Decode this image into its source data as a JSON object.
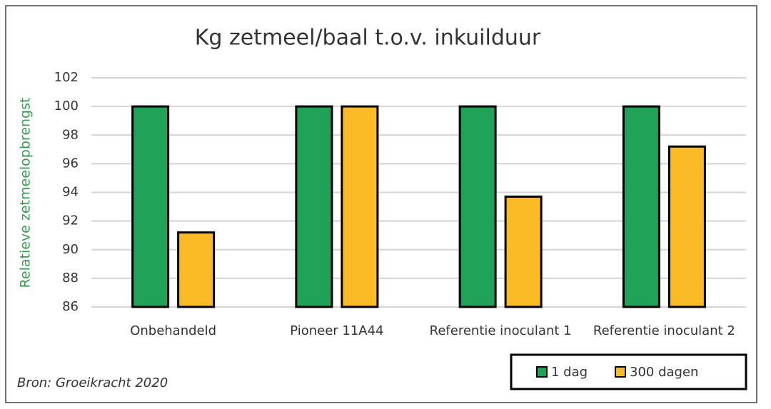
{
  "chart_data": {
    "type": "bar",
    "title": "Kg zetmeel/baal t.o.v. inkuilduur",
    "y_label": "Relatieve zetmeelopbrengst",
    "source": "Bron: Groeikracht 2020",
    "categories": [
      "Onbehandeld",
      "Pioneer 11A44",
      "Referentie inoculant 1",
      "Referentie inoculant 2"
    ],
    "series": [
      {
        "name": "1 dag",
        "color": "#1fa157",
        "values": [
          100,
          100,
          100,
          100
        ]
      },
      {
        "name": "300 dagen",
        "color": "#fbbb27",
        "values": [
          91.2,
          100,
          93.7,
          97.2
        ]
      }
    ],
    "ylim": [
      86,
      102
    ],
    "yticks": [
      86,
      88,
      90,
      92,
      94,
      96,
      98,
      100,
      102
    ],
    "grid": true,
    "legend": "bottom-right"
  }
}
